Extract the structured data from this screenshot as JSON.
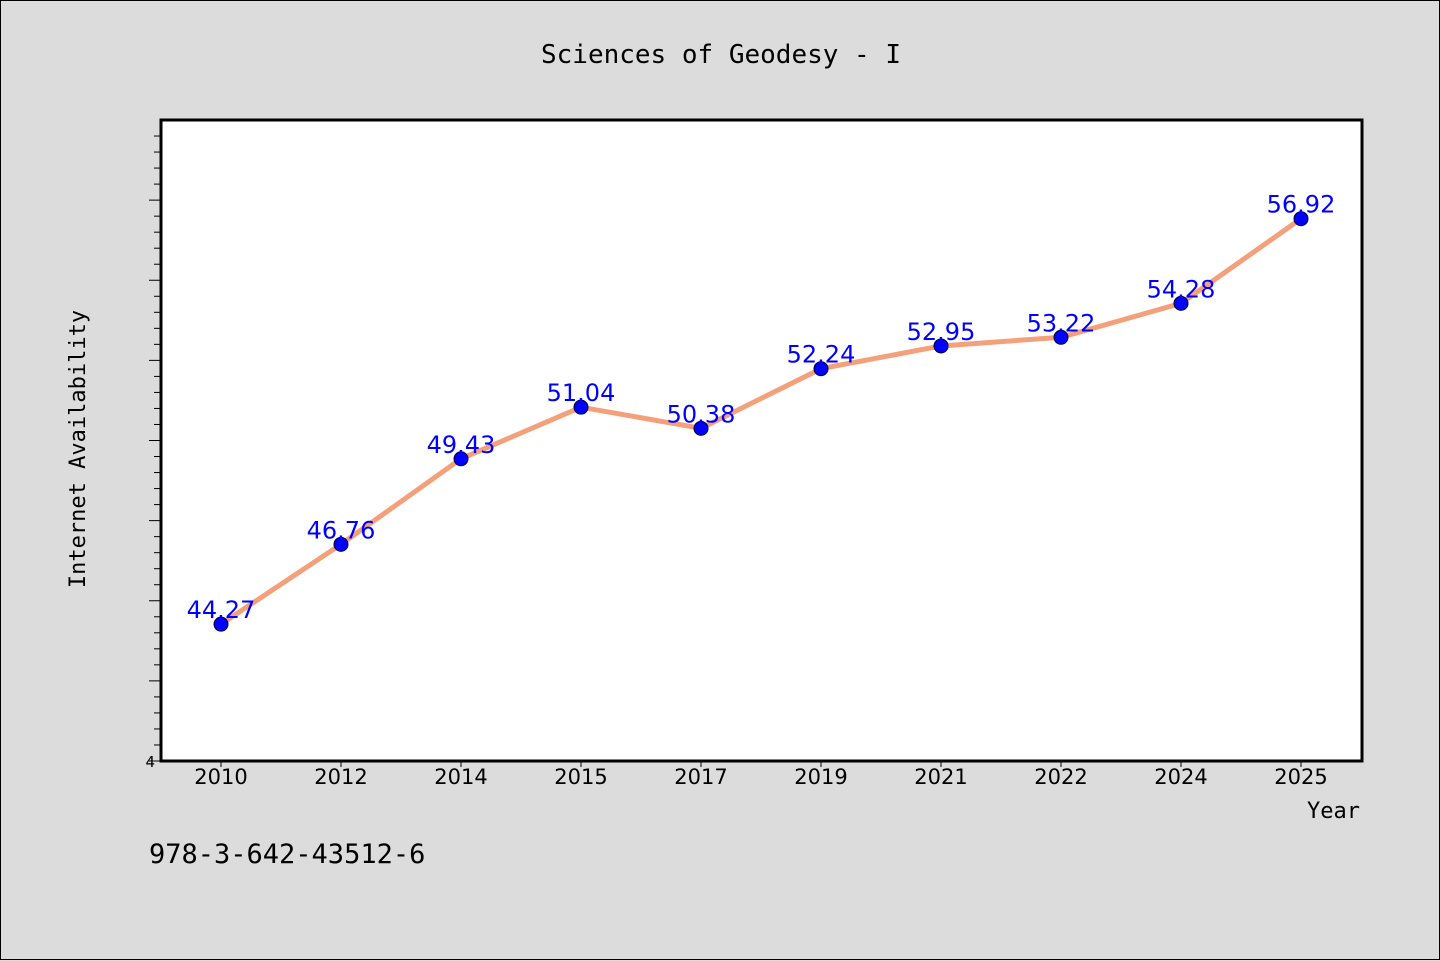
{
  "chart_data": {
    "type": "line",
    "title": "Sciences of Geodesy - I",
    "xlabel": "Year",
    "ylabel": "Internet Availability",
    "categories": [
      "2010",
      "2012",
      "2014",
      "2015",
      "2017",
      "2019",
      "2021",
      "2022",
      "2024",
      "2025"
    ],
    "series": [
      {
        "values": [
          44.27,
          46.76,
          49.43,
          51.04,
          50.38,
          52.24,
          52.95,
          53.22,
          54.28,
          56.92
        ],
        "labels": [
          "44.27",
          "46.76",
          "49.43",
          "51.04",
          "50.38",
          "52.24",
          "52.95",
          "53.22",
          "54.28",
          "56.92"
        ]
      }
    ],
    "y_tick_labels": [
      "4"
    ],
    "ylim": [
      40,
      60
    ],
    "grid": false,
    "colors": {
      "line": "#f4a07a",
      "marker": "#0000ff",
      "data_label": "#0000ff",
      "plot_background": "#ffffff",
      "page_background": "#dcdcdc"
    }
  },
  "footer": {
    "isbn": "978-3-642-43512-6"
  }
}
